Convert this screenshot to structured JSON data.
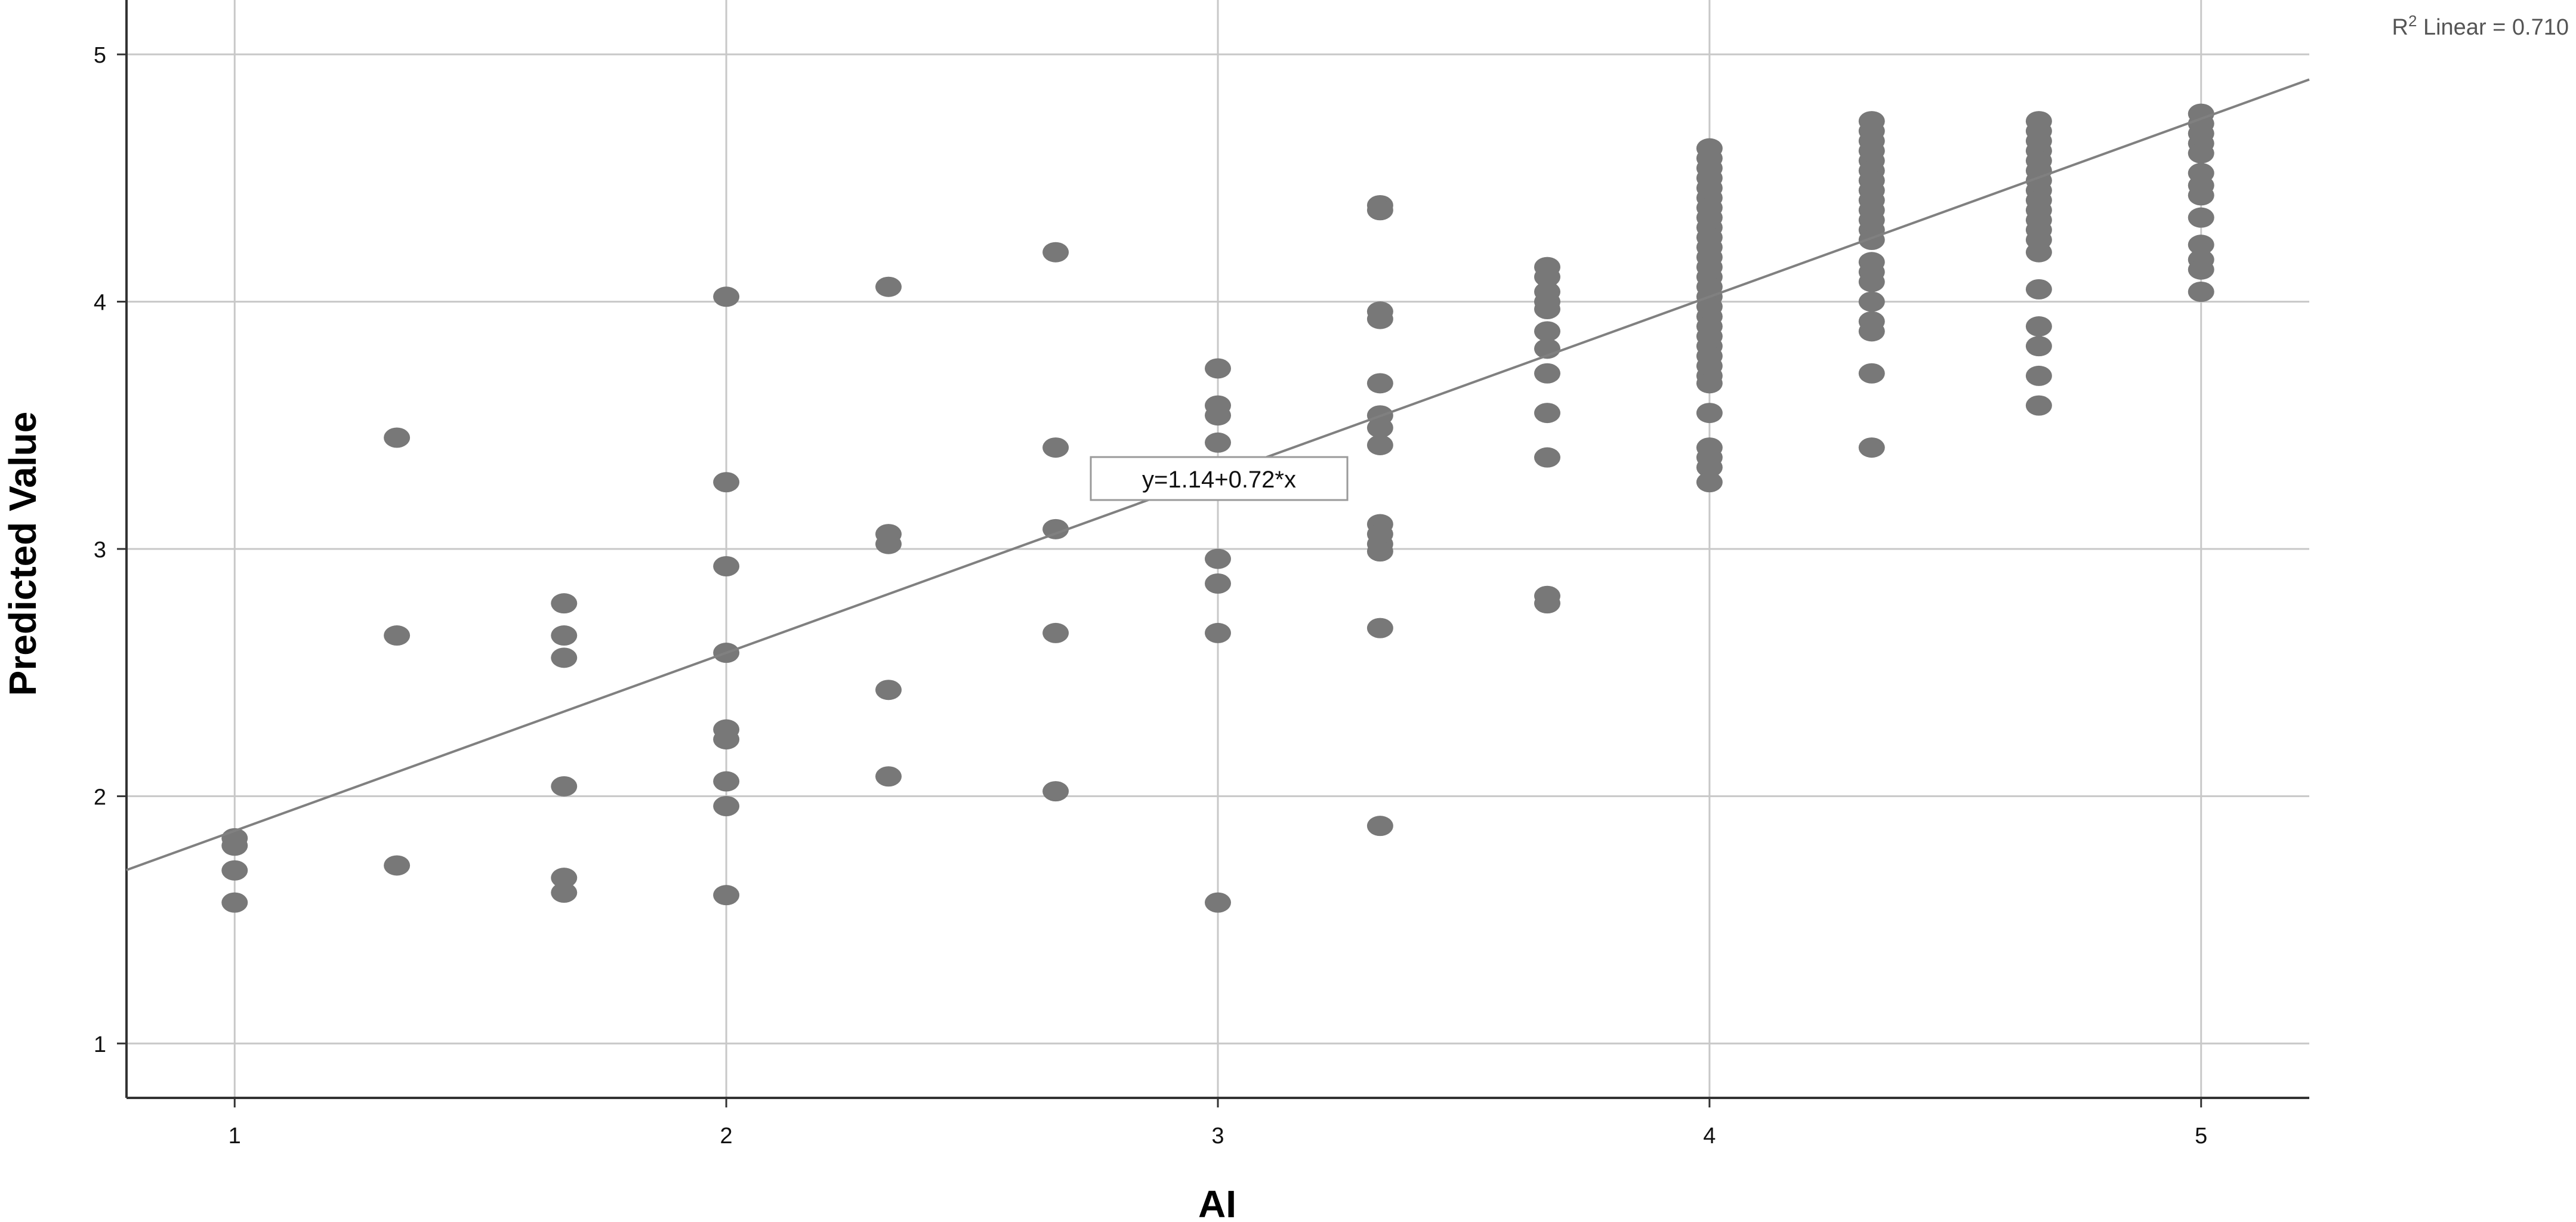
{
  "chart_data": {
    "type": "scatter",
    "xlabel": "AI",
    "ylabel": "Predicted Value",
    "xlim": [
      0.78,
      5.22
    ],
    "ylim": [
      0.78,
      5.22
    ],
    "xticks": [
      "1",
      "2",
      "3",
      "4",
      "5"
    ],
    "yticks": [
      "1",
      "2",
      "3",
      "4",
      "5"
    ],
    "grid": true,
    "point_color": "#787878",
    "line_color": "#808080",
    "fit": {
      "intercept": 1.14,
      "slope": 0.72,
      "equation_label": "y=1.14+0.72*x",
      "r2_prefix": "R",
      "r2_sup": "2",
      "r2_suffix": " Linear = 0.710"
    },
    "points": [
      [
        1.0,
        1.83
      ],
      [
        1.0,
        1.8
      ],
      [
        1.0,
        1.7
      ],
      [
        1.0,
        1.57
      ],
      [
        1.33,
        3.45
      ],
      [
        1.33,
        2.65
      ],
      [
        1.33,
        1.72
      ],
      [
        1.67,
        2.78
      ],
      [
        1.67,
        2.65
      ],
      [
        1.67,
        2.56
      ],
      [
        1.67,
        2.04
      ],
      [
        1.67,
        1.67
      ],
      [
        1.67,
        1.61
      ],
      [
        2.0,
        4.02
      ],
      [
        2.0,
        3.27
      ],
      [
        2.0,
        2.93
      ],
      [
        2.0,
        2.58
      ],
      [
        2.0,
        2.27
      ],
      [
        2.0,
        2.23
      ],
      [
        2.0,
        2.06
      ],
      [
        2.0,
        1.96
      ],
      [
        2.0,
        1.6
      ],
      [
        2.33,
        4.06
      ],
      [
        2.33,
        3.06
      ],
      [
        2.33,
        3.02
      ],
      [
        2.33,
        2.43
      ],
      [
        2.33,
        2.08
      ],
      [
        2.67,
        4.2
      ],
      [
        2.67,
        3.41
      ],
      [
        2.67,
        3.08
      ],
      [
        2.67,
        2.66
      ],
      [
        2.67,
        2.02
      ],
      [
        3.0,
        3.73
      ],
      [
        3.0,
        3.58
      ],
      [
        3.0,
        3.54
      ],
      [
        3.0,
        3.43
      ],
      [
        3.0,
        3.25
      ],
      [
        3.0,
        2.96
      ],
      [
        3.0,
        2.86
      ],
      [
        3.0,
        2.66
      ],
      [
        3.0,
        1.57
      ],
      [
        3.33,
        4.39
      ],
      [
        3.33,
        4.37
      ],
      [
        3.33,
        3.96
      ],
      [
        3.33,
        3.93
      ],
      [
        3.33,
        3.67
      ],
      [
        3.33,
        3.54
      ],
      [
        3.33,
        3.49
      ],
      [
        3.33,
        3.42
      ],
      [
        3.33,
        3.1
      ],
      [
        3.33,
        3.06
      ],
      [
        3.33,
        3.02
      ],
      [
        3.33,
        2.99
      ],
      [
        3.33,
        2.68
      ],
      [
        3.33,
        1.88
      ],
      [
        3.67,
        4.14
      ],
      [
        3.67,
        4.1
      ],
      [
        3.67,
        4.04
      ],
      [
        3.67,
        4.0
      ],
      [
        3.67,
        3.97
      ],
      [
        3.67,
        3.88
      ],
      [
        3.67,
        3.81
      ],
      [
        3.67,
        3.71
      ],
      [
        3.67,
        3.55
      ],
      [
        3.67,
        3.37
      ],
      [
        3.67,
        2.81
      ],
      [
        3.67,
        2.78
      ],
      [
        4.0,
        4.62
      ],
      [
        4.0,
        4.58
      ],
      [
        4.0,
        4.54
      ],
      [
        4.0,
        4.5
      ],
      [
        4.0,
        4.46
      ],
      [
        4.0,
        4.42
      ],
      [
        4.0,
        4.38
      ],
      [
        4.0,
        4.34
      ],
      [
        4.0,
        4.3
      ],
      [
        4.0,
        4.26
      ],
      [
        4.0,
        4.22
      ],
      [
        4.0,
        4.18
      ],
      [
        4.0,
        4.14
      ],
      [
        4.0,
        4.1
      ],
      [
        4.0,
        4.06
      ],
      [
        4.0,
        4.02
      ],
      [
        4.0,
        3.98
      ],
      [
        4.0,
        3.94
      ],
      [
        4.0,
        3.9
      ],
      [
        4.0,
        3.86
      ],
      [
        4.0,
        3.82
      ],
      [
        4.0,
        3.78
      ],
      [
        4.0,
        3.74
      ],
      [
        4.0,
        3.7
      ],
      [
        4.0,
        3.67
      ],
      [
        4.0,
        3.55
      ],
      [
        4.0,
        3.41
      ],
      [
        4.0,
        3.37
      ],
      [
        4.0,
        3.33
      ],
      [
        4.0,
        3.27
      ],
      [
        4.33,
        4.73
      ],
      [
        4.33,
        4.69
      ],
      [
        4.33,
        4.65
      ],
      [
        4.33,
        4.61
      ],
      [
        4.33,
        4.57
      ],
      [
        4.33,
        4.53
      ],
      [
        4.33,
        4.49
      ],
      [
        4.33,
        4.45
      ],
      [
        4.33,
        4.41
      ],
      [
        4.33,
        4.37
      ],
      [
        4.33,
        4.33
      ],
      [
        4.33,
        4.29
      ],
      [
        4.33,
        4.25
      ],
      [
        4.33,
        4.16
      ],
      [
        4.33,
        4.12
      ],
      [
        4.33,
        4.08
      ],
      [
        4.33,
        4.0
      ],
      [
        4.33,
        3.92
      ],
      [
        4.33,
        3.88
      ],
      [
        4.33,
        3.71
      ],
      [
        4.33,
        3.41
      ],
      [
        4.67,
        4.73
      ],
      [
        4.67,
        4.69
      ],
      [
        4.67,
        4.65
      ],
      [
        4.67,
        4.61
      ],
      [
        4.67,
        4.57
      ],
      [
        4.67,
        4.53
      ],
      [
        4.67,
        4.49
      ],
      [
        4.67,
        4.45
      ],
      [
        4.67,
        4.41
      ],
      [
        4.67,
        4.37
      ],
      [
        4.67,
        4.33
      ],
      [
        4.67,
        4.29
      ],
      [
        4.67,
        4.25
      ],
      [
        4.67,
        4.2
      ],
      [
        4.67,
        4.05
      ],
      [
        4.67,
        3.9
      ],
      [
        4.67,
        3.82
      ],
      [
        4.67,
        3.7
      ],
      [
        4.67,
        3.58
      ],
      [
        5.0,
        4.76
      ],
      [
        5.0,
        4.72
      ],
      [
        5.0,
        4.68
      ],
      [
        5.0,
        4.64
      ],
      [
        5.0,
        4.6
      ],
      [
        5.0,
        4.52
      ],
      [
        5.0,
        4.47
      ],
      [
        5.0,
        4.43
      ],
      [
        5.0,
        4.34
      ],
      [
        5.0,
        4.23
      ],
      [
        5.0,
        4.17
      ],
      [
        5.0,
        4.13
      ],
      [
        5.0,
        4.04
      ]
    ]
  }
}
